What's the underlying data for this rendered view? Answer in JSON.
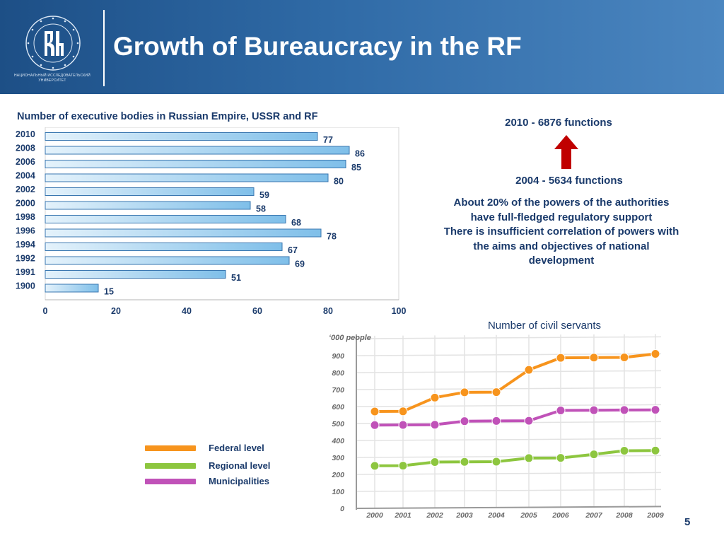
{
  "header": {
    "title": "Growth of Bureaucracy in the RF",
    "logo_caption": "НАЦИОНАЛЬНЫЙ ИССЛЕДОВАТЕЛЬСКИЙ УНИВЕРСИТЕТ",
    "logo_ring_text": "ВЫСШАЯ ШКОЛА ЭКОНОМИКИ",
    "background_color": "#2f6aa6"
  },
  "info": {
    "functions_2010": "2010 - 6876 functions",
    "functions_2004": "2004 - 5634 functions",
    "arrow_color": "#c00000",
    "description_lines": [
      "About 20% of the powers of the authorities",
      "have full-fledged regulatory support",
      "There is insufficient correlation of powers with",
      "the aims and objectives of national",
      "development"
    ]
  },
  "legend": {
    "items": [
      {
        "label": "Federal level",
        "color": "#f7941d"
      },
      {
        "label": "Regional level",
        "color": "#8dc63f"
      },
      {
        "label": "Municipalities",
        "color": "#c052b8"
      }
    ]
  },
  "page_number": "5",
  "chart_data": [
    {
      "type": "bar",
      "orientation": "horizontal",
      "title": "Number of executive bodies in Russian Empire, USSR and RF",
      "categories": [
        "2010",
        "2008",
        "2006",
        "2004",
        "2002",
        "2000",
        "1998",
        "1996",
        "1994",
        "1992",
        "1991",
        "1900"
      ],
      "values": [
        77,
        86,
        85,
        80,
        59,
        58,
        68,
        78,
        67,
        69,
        51,
        15
      ],
      "xlim": [
        0,
        100
      ],
      "xticks": [
        0,
        20,
        40,
        60,
        80,
        100
      ],
      "grid": false,
      "bar_color": "#7fbfe9",
      "label_color": "#1a3a6b"
    },
    {
      "type": "line",
      "title": "Number of civil servants",
      "ylabel": "‘000 people",
      "x": [
        "2000",
        "2001",
        "2002",
        "2003",
        "2004",
        "2005",
        "2006",
        "2007",
        "2008",
        "2009"
      ],
      "ylim": [
        0,
        1000
      ],
      "yticks": [
        0,
        100,
        200,
        300,
        400,
        500,
        600,
        700,
        800,
        900
      ],
      "grid": true,
      "legend_position": "left",
      "series": [
        {
          "name": "Federal level",
          "color": "#f7941d",
          "values": [
            570,
            570,
            650,
            680,
            680,
            810,
            880,
            880,
            880,
            900
          ]
        },
        {
          "name": "Regional level",
          "color": "#8dc63f",
          "values": [
            250,
            250,
            270,
            270,
            270,
            290,
            290,
            310,
            330,
            330
          ]
        },
        {
          "name": "Municipalities",
          "color": "#c052b8",
          "values": [
            490,
            490,
            490,
            510,
            510,
            510,
            570,
            570,
            570,
            570
          ]
        }
      ]
    }
  ]
}
